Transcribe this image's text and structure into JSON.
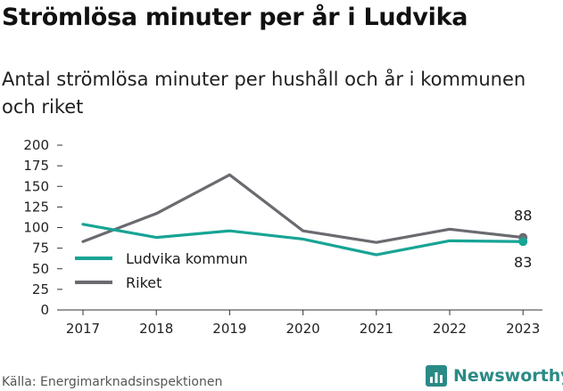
{
  "header": {
    "title": "Strömlösa minuter per år i Ludvika",
    "subtitle": "Antal strömlösa minuter per hushåll och år i kommunen och riket"
  },
  "footer": {
    "source": "Källa: Energimarknadsinspektionen",
    "brand": "Newsworthy",
    "brand_icon": "bar-chart-logo-icon",
    "brand_color": "#2a8a86"
  },
  "chart_data": {
    "type": "line",
    "x": [
      "2017",
      "2018",
      "2019",
      "2020",
      "2021",
      "2022",
      "2023"
    ],
    "series": [
      {
        "name": "Ludvika kommun",
        "color": "#17a495",
        "values": [
          104,
          88,
          96,
          86,
          67,
          84,
          83
        ]
      },
      {
        "name": "Riket",
        "color": "#6b6a70",
        "values": [
          83,
          117,
          164,
          96,
          82,
          98,
          88
        ]
      }
    ],
    "ylim": [
      0,
      200
    ],
    "yticks": [
      0,
      25,
      50,
      75,
      100,
      125,
      150,
      175,
      200
    ],
    "end_labels": [
      "83",
      "88"
    ],
    "legend_position": "bottom-left",
    "grid": false
  }
}
